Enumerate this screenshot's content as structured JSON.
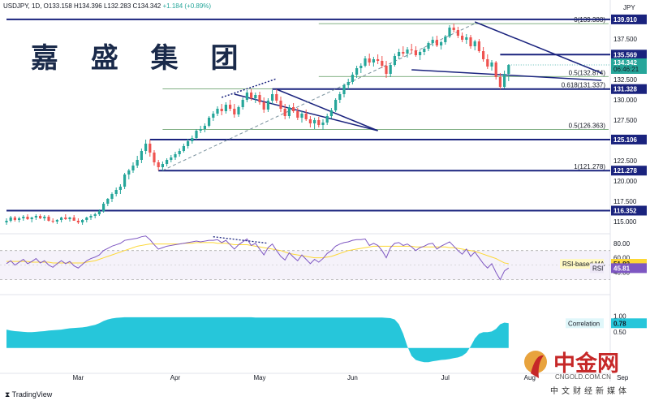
{
  "header": {
    "symbol": "USDJPY, 1D,",
    "ohlc": "O133.158 H134.396 L132.283 C134.342",
    "change": "+1.184 (+0.89%)",
    "currency": "JPY"
  },
  "watermark_text": "嘉 盛 集 团",
  "footer": {
    "tradingview": "TradingView"
  },
  "cngold": {
    "name": "中金网",
    "url": "CNGOLD.COM.CN",
    "sub": "中文财经新媒体"
  },
  "colors": {
    "up": "#26a69a",
    "down": "#ef5350",
    "line": "#1a237e",
    "fib": "#2e7d32",
    "rsi": "#7e57c2",
    "rsi_ma": "#fdd835",
    "correlation": "#26c6da"
  },
  "chart_data": {
    "type": "candlestick",
    "x_ticks": [
      {
        "label": "Mar",
        "idx": 17
      },
      {
        "label": "Apr",
        "idx": 40
      },
      {
        "label": "May",
        "idx": 60
      },
      {
        "label": "Jun",
        "idx": 82
      },
      {
        "label": "Jul",
        "idx": 104
      },
      {
        "label": "Aug",
        "idx": 124
      },
      {
        "label": "Sep",
        "idx": 146
      }
    ],
    "y_ticks": [
      115.0,
      117.5,
      120.0,
      122.5,
      125.0,
      127.5,
      130.0,
      132.5,
      135.0,
      137.5
    ],
    "ylim": [
      113.6,
      140.5
    ],
    "current_price": {
      "label": "134.342",
      "countdown": "06:46:21"
    },
    "horizontal_levels": [
      {
        "label": "139.910",
        "value": 139.91,
        "from_idx": 0
      },
      {
        "label": "135.569",
        "value": 135.569,
        "from_idx": 117
      },
      {
        "label": "131.328",
        "value": 131.328,
        "from_idx": 63
      },
      {
        "label": "125.106",
        "value": 125.106,
        "from_idx": 34
      },
      {
        "label": "121.278",
        "value": 121.278,
        "from_idx": 36
      },
      {
        "label": "116.352",
        "value": 116.352,
        "from_idx": 0
      }
    ],
    "fib_levels": [
      {
        "label": "0(139.388)",
        "value": 139.388,
        "from_idx": 74
      },
      {
        "label": "0.5(132.874)",
        "value": 132.874,
        "from_idx": 74
      },
      {
        "label": "0.618(131.337)",
        "value": 131.337,
        "from_idx": 37
      },
      {
        "label": "0.5(126.363)",
        "value": 126.363,
        "from_idx": 37
      },
      {
        "label": "1(121.278)",
        "value": 121.278,
        "from_idx": 37
      }
    ],
    "trendlines": [
      {
        "from": [
          54,
          130.7
        ],
        "to": [
          88,
          126.2
        ],
        "style": "solid"
      },
      {
        "from": [
          64,
          131.3
        ],
        "to": [
          88,
          126.2
        ],
        "style": "solid"
      },
      {
        "from": [
          111,
          139.6
        ],
        "to": [
          141,
          133.3
        ],
        "style": "solid"
      },
      {
        "from": [
          96,
          133.7
        ],
        "to": [
          141,
          132.4
        ],
        "style": "solid"
      },
      {
        "from": [
          37,
          121.3
        ],
        "to": [
          111,
          139.4
        ],
        "style": "dashed"
      },
      {
        "from": [
          51,
          130.3
        ],
        "to": [
          64,
          132.6
        ],
        "style": "dotted"
      }
    ],
    "candles": [
      [
        114.9,
        115.4,
        114.6,
        115.1
      ],
      [
        115.1,
        115.7,
        114.9,
        115.5
      ],
      [
        115.5,
        115.7,
        115.0,
        115.2
      ],
      [
        115.2,
        115.6,
        114.9,
        115.4
      ],
      [
        115.4,
        115.8,
        115.1,
        115.6
      ],
      [
        115.6,
        115.9,
        115.2,
        115.3
      ],
      [
        115.3,
        115.6,
        114.9,
        115.5
      ],
      [
        115.5,
        115.9,
        115.2,
        115.7
      ],
      [
        115.7,
        115.9,
        115.3,
        115.4
      ],
      [
        115.4,
        115.8,
        115.1,
        115.6
      ],
      [
        115.6,
        115.8,
        115.0,
        115.1
      ],
      [
        115.1,
        115.4,
        114.8,
        115.0
      ],
      [
        115.0,
        115.3,
        114.7,
        115.2
      ],
      [
        115.2,
        115.6,
        114.9,
        115.5
      ],
      [
        115.5,
        115.9,
        115.2,
        115.3
      ],
      [
        115.3,
        115.6,
        115.0,
        115.5
      ],
      [
        115.5,
        115.8,
        115.2,
        115.1
      ],
      [
        115.1,
        115.4,
        114.7,
        114.9
      ],
      [
        114.9,
        115.3,
        114.6,
        115.2
      ],
      [
        115.2,
        115.6,
        114.9,
        115.5
      ],
      [
        115.5,
        115.9,
        115.2,
        115.7
      ],
      [
        115.7,
        116.1,
        115.4,
        115.9
      ],
      [
        115.9,
        116.5,
        115.7,
        116.3
      ],
      [
        116.3,
        117.4,
        116.1,
        117.2
      ],
      [
        117.2,
        117.9,
        116.9,
        117.8
      ],
      [
        117.8,
        118.6,
        117.4,
        118.4
      ],
      [
        118.4,
        119.2,
        118.1,
        118.9
      ],
      [
        118.9,
        119.6,
        118.4,
        119.3
      ],
      [
        119.3,
        121.0,
        119.0,
        120.8
      ],
      [
        120.8,
        121.5,
        120.2,
        121.3
      ],
      [
        121.3,
        122.3,
        121.0,
        121.9
      ],
      [
        121.9,
        123.1,
        121.6,
        122.6
      ],
      [
        122.6,
        124.0,
        122.2,
        123.7
      ],
      [
        123.7,
        125.1,
        123.3,
        124.6
      ],
      [
        124.6,
        125.1,
        123.0,
        123.5
      ],
      [
        123.5,
        123.8,
        121.9,
        122.3
      ],
      [
        122.3,
        122.6,
        121.3,
        121.7
      ],
      [
        121.7,
        122.4,
        121.3,
        122.1
      ],
      [
        122.1,
        122.8,
        121.8,
        122.6
      ],
      [
        122.6,
        123.2,
        122.3,
        122.9
      ],
      [
        122.9,
        123.6,
        122.6,
        123.3
      ],
      [
        123.3,
        124.0,
        123.0,
        123.7
      ],
      [
        123.7,
        124.6,
        123.5,
        124.3
      ],
      [
        124.3,
        125.2,
        124.0,
        124.9
      ],
      [
        124.9,
        125.6,
        124.6,
        125.3
      ],
      [
        125.3,
        126.4,
        125.1,
        126.2
      ],
      [
        126.2,
        126.8,
        125.9,
        126.4
      ],
      [
        126.4,
        127.1,
        126.0,
        126.8
      ],
      [
        126.8,
        128.0,
        126.6,
        127.8
      ],
      [
        127.8,
        128.6,
        127.4,
        128.3
      ],
      [
        128.3,
        129.2,
        128.0,
        128.9
      ],
      [
        128.9,
        129.5,
        128.1,
        128.6
      ],
      [
        128.6,
        129.7,
        128.3,
        129.4
      ],
      [
        129.4,
        130.0,
        128.6,
        128.9
      ],
      [
        128.9,
        129.5,
        127.8,
        128.2
      ],
      [
        128.2,
        129.3,
        127.9,
        129.1
      ],
      [
        129.1,
        130.3,
        128.8,
        130.0
      ],
      [
        130.0,
        131.2,
        129.7,
        130.9
      ],
      [
        130.9,
        131.3,
        129.9,
        130.2
      ],
      [
        130.2,
        130.9,
        129.6,
        130.6
      ],
      [
        130.6,
        131.0,
        129.4,
        129.7
      ],
      [
        129.7,
        130.3,
        128.4,
        128.8
      ],
      [
        128.8,
        130.2,
        128.5,
        129.9
      ],
      [
        129.9,
        131.2,
        129.5,
        130.7
      ],
      [
        130.7,
        131.3,
        129.6,
        129.9
      ],
      [
        129.9,
        130.4,
        128.5,
        128.9
      ],
      [
        128.9,
        129.5,
        127.6,
        128.0
      ],
      [
        128.0,
        129.4,
        127.7,
        129.1
      ],
      [
        129.1,
        129.6,
        128.4,
        128.6
      ],
      [
        128.6,
        129.0,
        127.5,
        127.8
      ],
      [
        127.8,
        128.6,
        127.2,
        128.3
      ],
      [
        128.3,
        128.8,
        127.4,
        127.6
      ],
      [
        127.6,
        128.0,
        126.6,
        127.1
      ],
      [
        127.1,
        127.8,
        126.4,
        127.5
      ],
      [
        127.5,
        127.9,
        126.6,
        126.9
      ],
      [
        126.9,
        127.6,
        126.3,
        127.2
      ],
      [
        127.2,
        128.3,
        126.9,
        128.0
      ],
      [
        128.0,
        129.0,
        127.7,
        128.7
      ],
      [
        128.7,
        130.2,
        128.5,
        130.0
      ],
      [
        130.0,
        131.0,
        129.6,
        130.7
      ],
      [
        130.7,
        132.0,
        130.3,
        131.8
      ],
      [
        131.8,
        132.6,
        131.3,
        132.2
      ],
      [
        132.2,
        133.4,
        131.9,
        133.1
      ],
      [
        133.1,
        134.2,
        132.7,
        133.9
      ],
      [
        133.9,
        134.5,
        133.3,
        134.2
      ],
      [
        134.2,
        135.4,
        134.0,
        135.1
      ],
      [
        135.1,
        135.7,
        134.2,
        134.6
      ],
      [
        134.6,
        135.3,
        134.1,
        135.0
      ],
      [
        135.0,
        135.6,
        134.4,
        134.8
      ],
      [
        134.8,
        135.4,
        133.9,
        134.2
      ],
      [
        134.2,
        134.8,
        132.7,
        133.2
      ],
      [
        133.2,
        134.5,
        132.8,
        134.3
      ],
      [
        134.3,
        135.7,
        134.1,
        135.4
      ],
      [
        135.4,
        136.3,
        135.0,
        135.9
      ],
      [
        135.9,
        136.6,
        135.3,
        135.7
      ],
      [
        135.7,
        136.5,
        135.2,
        136.2
      ],
      [
        136.2,
        136.9,
        135.7,
        136.1
      ],
      [
        136.1,
        136.6,
        135.3,
        135.5
      ],
      [
        135.5,
        136.1,
        134.9,
        135.9
      ],
      [
        135.9,
        136.5,
        135.5,
        136.3
      ],
      [
        136.3,
        137.2,
        136.0,
        137.0
      ],
      [
        137.0,
        137.8,
        136.6,
        137.4
      ],
      [
        137.4,
        137.9,
        136.5,
        136.7
      ],
      [
        136.7,
        137.3,
        136.2,
        137.1
      ],
      [
        137.1,
        138.0,
        136.8,
        137.8
      ],
      [
        137.8,
        139.2,
        137.6,
        138.9
      ],
      [
        138.9,
        139.4,
        138.3,
        138.6
      ],
      [
        138.6,
        139.0,
        137.6,
        137.9
      ],
      [
        137.9,
        138.3,
        137.1,
        137.4
      ],
      [
        137.4,
        138.1,
        136.9,
        137.7
      ],
      [
        137.7,
        138.0,
        136.3,
        136.6
      ],
      [
        136.6,
        137.4,
        136.1,
        137.2
      ],
      [
        137.2,
        137.5,
        135.8,
        136.0
      ],
      [
        136.0,
        136.5,
        134.7,
        135.0
      ],
      [
        135.0,
        135.6,
        133.8,
        134.1
      ],
      [
        134.1,
        134.9,
        133.6,
        134.6
      ],
      [
        134.6,
        134.8,
        132.5,
        132.8
      ],
      [
        132.8,
        133.3,
        131.3,
        131.6
      ],
      [
        131.6,
        133.6,
        131.4,
        133.2
      ],
      [
        133.2,
        134.4,
        132.3,
        134.3
      ]
    ],
    "rsi": {
      "ylim": [
        15,
        92
      ],
      "y_ticks": [
        40.0,
        60.0,
        80.0
      ],
      "bands": [
        30,
        70
      ],
      "rsi_ma_label": "RSI-based MA",
      "rsi_ma_value": "51.82",
      "rsi_label": "RSI",
      "rsi_value": "45.81",
      "rsi_values": [
        52,
        56,
        50,
        54,
        58,
        52,
        55,
        59,
        53,
        56,
        50,
        47,
        52,
        56,
        52,
        55,
        49,
        46,
        51,
        56,
        59,
        61,
        64,
        70,
        73,
        76,
        78,
        80,
        84,
        85,
        86,
        87,
        89,
        90,
        85,
        78,
        72,
        74,
        76,
        77,
        78,
        79,
        80,
        81,
        82,
        83,
        82,
        83,
        84,
        84,
        85,
        81,
        84,
        78,
        72,
        78,
        82,
        86,
        77,
        80,
        72,
        64,
        74,
        79,
        70,
        62,
        57,
        67,
        61,
        56,
        64,
        58,
        52,
        58,
        54,
        59,
        66,
        70,
        76,
        79,
        81,
        82,
        84,
        85,
        85,
        86,
        77,
        80,
        77,
        70,
        60,
        74,
        80,
        81,
        77,
        79,
        75,
        70,
        74,
        76,
        79,
        80,
        72,
        76,
        79,
        82,
        76,
        70,
        65,
        72,
        62,
        68,
        60,
        52,
        46,
        52,
        40,
        30,
        42,
        46
      ],
      "rsi_ma_values": [
        55,
        55,
        55,
        55,
        55,
        55,
        54,
        54,
        54,
        54,
        54,
        53,
        53,
        53,
        53,
        53,
        53,
        53,
        53,
        54,
        55,
        56,
        58,
        60,
        62,
        64,
        66,
        68,
        70,
        72,
        74,
        76,
        77,
        78,
        79,
        79,
        79,
        79,
        79,
        79,
        79,
        79,
        80,
        80,
        80,
        81,
        81,
        81,
        81,
        81,
        80,
        80,
        80,
        79,
        78,
        78,
        78,
        78,
        77,
        76,
        75,
        74,
        73,
        72,
        71,
        70,
        68,
        66,
        65,
        64,
        63,
        62,
        61,
        60,
        60,
        60,
        61,
        62,
        64,
        66,
        68,
        70,
        71,
        72,
        73,
        74,
        75,
        76,
        76,
        76,
        76,
        76,
        76,
        76,
        76,
        76,
        76,
        75,
        75,
        75,
        75,
        75,
        75,
        75,
        75,
        74,
        74,
        73,
        72,
        71,
        70,
        69,
        67,
        65,
        63,
        61,
        59,
        56,
        53,
        52
      ]
    },
    "correlation": {
      "label": "Correlation",
      "value": "0.78",
      "ylim": [
        -0.75,
        1.12
      ],
      "y_ticks": [
        0.5,
        1.0
      ],
      "values": [
        0.58,
        0.55,
        0.53,
        0.52,
        0.51,
        0.5,
        0.5,
        0.51,
        0.52,
        0.53,
        0.55,
        0.56,
        0.57,
        0.58,
        0.6,
        0.62,
        0.63,
        0.64,
        0.65,
        0.67,
        0.7,
        0.73,
        0.78,
        0.85,
        0.9,
        0.93,
        0.95,
        0.96,
        0.97,
        0.97,
        0.97,
        0.97,
        0.97,
        0.97,
        0.97,
        0.97,
        0.97,
        0.97,
        0.97,
        0.97,
        0.97,
        0.97,
        0.97,
        0.97,
        0.97,
        0.97,
        0.97,
        0.97,
        0.97,
        0.97,
        0.97,
        0.97,
        0.97,
        0.97,
        0.97,
        0.97,
        0.97,
        0.97,
        0.97,
        0.96,
        0.96,
        0.96,
        0.96,
        0.96,
        0.96,
        0.96,
        0.96,
        0.96,
        0.96,
        0.96,
        0.96,
        0.96,
        0.96,
        0.96,
        0.96,
        0.96,
        0.96,
        0.96,
        0.96,
        0.96,
        0.96,
        0.96,
        0.96,
        0.96,
        0.96,
        0.96,
        0.96,
        0.96,
        0.96,
        0.96,
        0.95,
        0.94,
        0.9,
        0.75,
        0.45,
        0.05,
        -0.25,
        -0.38,
        -0.42,
        -0.45,
        -0.45,
        -0.42,
        -0.4,
        -0.38,
        -0.37,
        -0.35,
        -0.32,
        -0.3,
        -0.25,
        -0.15,
        0.05,
        0.3,
        0.45,
        0.5,
        0.5,
        0.52,
        0.6,
        0.75,
        0.8,
        0.78
      ]
    }
  }
}
